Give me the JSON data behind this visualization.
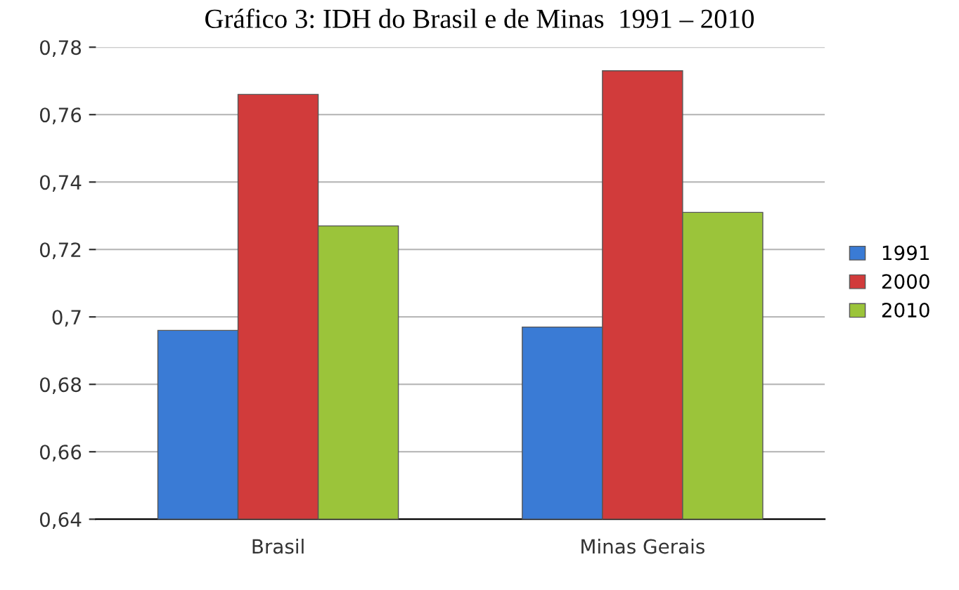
{
  "chart_data": {
    "type": "bar",
    "title": "Gráfico 3: IDH do Brasil e de Minas  1991 – 2010",
    "categories": [
      "Brasil",
      "Minas Gerais"
    ],
    "series": [
      {
        "name": "1991",
        "color": "#3a7bd5",
        "values": [
          0.696,
          0.697
        ]
      },
      {
        "name": "2000",
        "color": "#d13b3b",
        "values": [
          0.766,
          0.773
        ]
      },
      {
        "name": "2010",
        "color": "#9bc43a",
        "values": [
          0.727,
          0.731
        ]
      }
    ],
    "ylim": [
      0.64,
      0.78
    ],
    "yticks": [
      {
        "value": 0.64,
        "label": "0,64"
      },
      {
        "value": 0.66,
        "label": "0,66"
      },
      {
        "value": 0.68,
        "label": "0,68"
      },
      {
        "value": 0.7,
        "label": "0,7"
      },
      {
        "value": 0.72,
        "label": "0,72"
      },
      {
        "value": 0.74,
        "label": "0,74"
      },
      {
        "value": 0.76,
        "label": "0,76"
      },
      {
        "value": 0.78,
        "label": "0,78"
      }
    ],
    "grid": "y",
    "legend": "right"
  }
}
